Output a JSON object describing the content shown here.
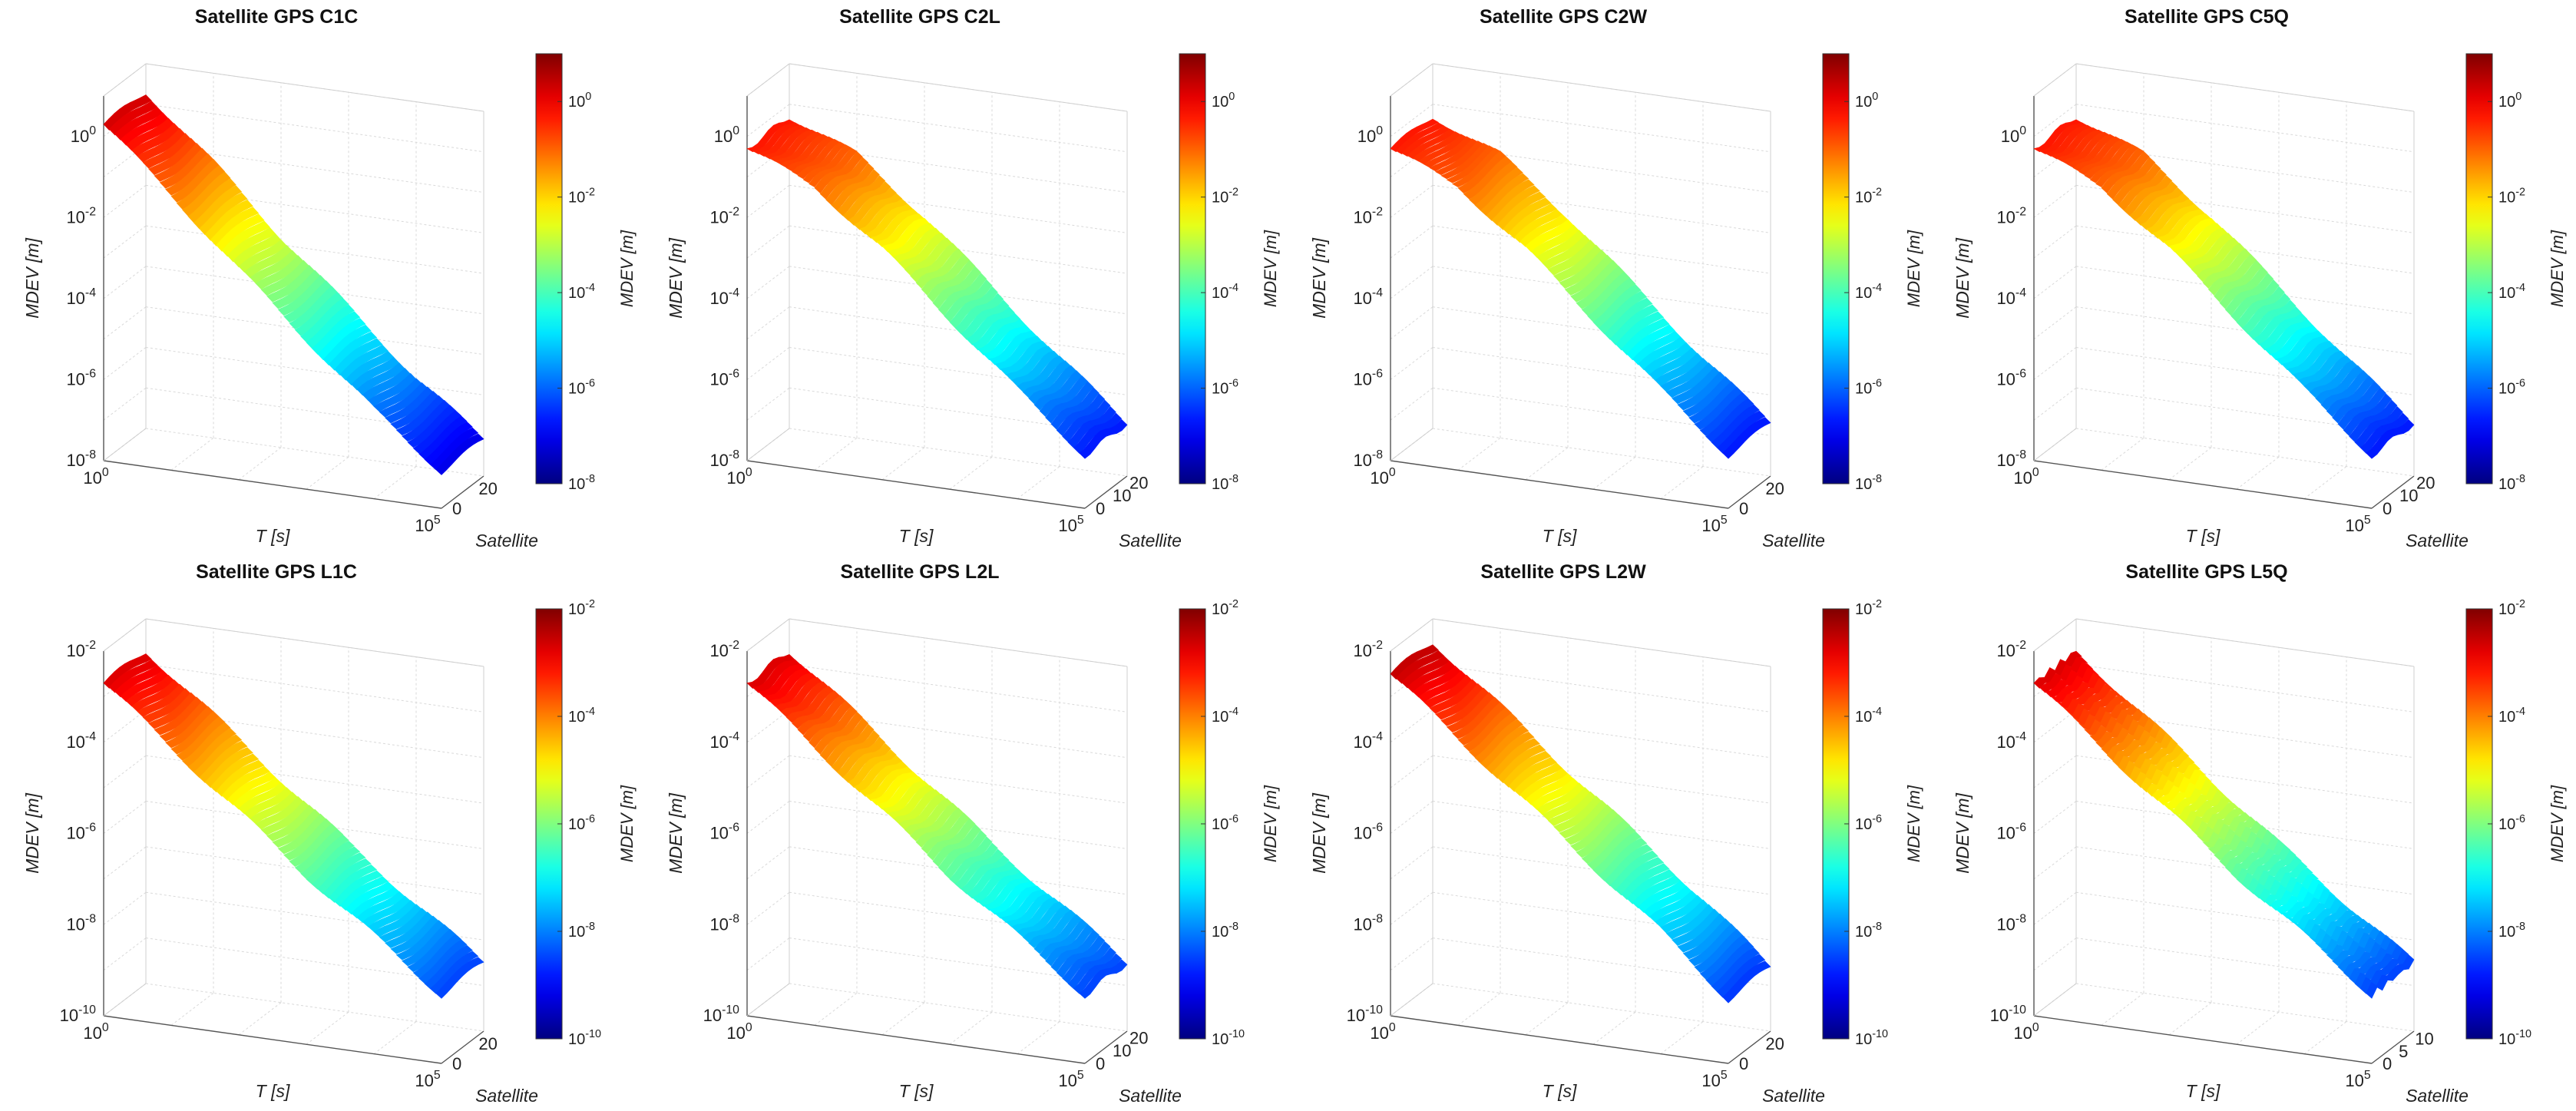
{
  "chart_data": [
    {
      "type": "surface",
      "title": "Satellite GPS C1C",
      "xlabel": "T [s]",
      "ylabel": "Satellite",
      "zlabel": "MDEV [m]",
      "colorbar_label": "MDEV [m]",
      "x_ticks": [
        "10^0",
        "10^5"
      ],
      "y_ticks": [
        "0",
        "20"
      ],
      "z_ticks": [
        "10^-8",
        "10^-6",
        "10^-4",
        "10^-2",
        "10^0"
      ],
      "colorbar_ticks": [
        "10^-8",
        "10^-6",
        "10^-4",
        "10^-2",
        "10^0"
      ],
      "x_log_range": [
        0,
        5
      ],
      "z_log_range": [
        -8,
        1
      ],
      "satellite_range": [
        0,
        32
      ],
      "colormap": "jet",
      "surface": {
        "tau_log": [
          0,
          1,
          2,
          3,
          4,
          5
        ],
        "mdev_log": [
          0.3,
          -1.2,
          -2.8,
          -4.3,
          -5.8,
          -7.1
        ]
      }
    },
    {
      "type": "surface",
      "title": "Satellite GPS C2L",
      "xlabel": "T [s]",
      "ylabel": "Satellite",
      "zlabel": "MDEV [m]",
      "colorbar_label": "MDEV [m]",
      "x_ticks": [
        "10^0",
        "10^5"
      ],
      "y_ticks": [
        "0",
        "10",
        "20"
      ],
      "z_ticks": [
        "10^-8",
        "10^-6",
        "10^-4",
        "10^-2",
        "10^0"
      ],
      "colorbar_ticks": [
        "10^-8",
        "10^-6",
        "10^-4",
        "10^-2",
        "10^0"
      ],
      "x_log_range": [
        0,
        5
      ],
      "z_log_range": [
        -8,
        1
      ],
      "satellite_range": [
        0,
        25
      ],
      "colormap": "jet",
      "surface": {
        "tau_log": [
          0,
          1,
          2,
          3,
          4,
          5
        ],
        "mdev_log": [
          -0.3,
          -1.0,
          -2.3,
          -3.8,
          -5.3,
          -6.7
        ]
      }
    },
    {
      "type": "surface",
      "title": "Satellite GPS C2W",
      "xlabel": "T [s]",
      "ylabel": "Satellite",
      "zlabel": "MDEV [m]",
      "colorbar_label": "MDEV [m]",
      "x_ticks": [
        "10^0",
        "10^5"
      ],
      "y_ticks": [
        "0",
        "20"
      ],
      "z_ticks": [
        "10^-8",
        "10^-6",
        "10^-4",
        "10^-2",
        "10^0"
      ],
      "colorbar_ticks": [
        "10^-8",
        "10^-6",
        "10^-4",
        "10^-2",
        "10^0"
      ],
      "x_log_range": [
        0,
        5
      ],
      "z_log_range": [
        -8,
        1
      ],
      "satellite_range": [
        0,
        32
      ],
      "colormap": "jet",
      "surface": {
        "tau_log": [
          0,
          1,
          2,
          3,
          4,
          5
        ],
        "mdev_log": [
          -0.3,
          -1.0,
          -2.3,
          -3.8,
          -5.3,
          -6.7
        ]
      }
    },
    {
      "type": "surface",
      "title": "Satellite GPS C5Q",
      "xlabel": "T [s]",
      "ylabel": "Satellite",
      "zlabel": "MDEV [m]",
      "colorbar_label": "MDEV [m]",
      "x_ticks": [
        "10^0",
        "10^5"
      ],
      "y_ticks": [
        "0",
        "10",
        "20"
      ],
      "z_ticks": [
        "10^-8",
        "10^-6",
        "10^-4",
        "10^-2",
        "10^0"
      ],
      "colorbar_ticks": [
        "10^-8",
        "10^-6",
        "10^-4",
        "10^-2",
        "10^0"
      ],
      "x_log_range": [
        0,
        5
      ],
      "z_log_range": [
        -8,
        1
      ],
      "satellite_range": [
        0,
        25
      ],
      "colormap": "jet",
      "surface": {
        "tau_log": [
          0,
          1,
          2,
          3,
          4,
          5
        ],
        "mdev_log": [
          -0.3,
          -1.0,
          -2.3,
          -3.8,
          -5.3,
          -6.7
        ]
      }
    },
    {
      "type": "surface",
      "title": "Satellite GPS L1C",
      "xlabel": "T [s]",
      "ylabel": "Satellite",
      "zlabel": "MDEV [m]",
      "colorbar_label": "MDEV [m]",
      "x_ticks": [
        "10^0",
        "10^5"
      ],
      "y_ticks": [
        "0",
        "20"
      ],
      "z_ticks": [
        "10^-10",
        "10^-8",
        "10^-6",
        "10^-4",
        "10^-2"
      ],
      "colorbar_ticks": [
        "10^-10",
        "10^-8",
        "10^-6",
        "10^-4",
        "10^-2"
      ],
      "x_log_range": [
        0,
        5
      ],
      "z_log_range": [
        -10,
        -2
      ],
      "satellite_range": [
        0,
        32
      ],
      "colormap": "jet",
      "surface": {
        "tau_log": [
          0,
          1,
          2,
          3,
          4,
          5
        ],
        "mdev_log": [
          -2.7,
          -3.9,
          -5.1,
          -6.3,
          -7.4,
          -8.5
        ]
      }
    },
    {
      "type": "surface",
      "title": "Satellite GPS L2L",
      "xlabel": "T [s]",
      "ylabel": "Satellite",
      "zlabel": "MDEV [m]",
      "colorbar_label": "MDEV [m]",
      "x_ticks": [
        "10^0",
        "10^5"
      ],
      "y_ticks": [
        "0",
        "10",
        "20"
      ],
      "z_ticks": [
        "10^-10",
        "10^-8",
        "10^-6",
        "10^-4",
        "10^-2"
      ],
      "colorbar_ticks": [
        "10^-10",
        "10^-8",
        "10^-6",
        "10^-4",
        "10^-2"
      ],
      "x_log_range": [
        0,
        5
      ],
      "z_log_range": [
        -10,
        -2
      ],
      "satellite_range": [
        0,
        25
      ],
      "colormap": "jet",
      "surface": {
        "tau_log": [
          0,
          1,
          2,
          3,
          4,
          5
        ],
        "mdev_log": [
          -2.7,
          -3.9,
          -5.1,
          -6.3,
          -7.4,
          -8.5
        ]
      }
    },
    {
      "type": "surface",
      "title": "Satellite GPS L2W",
      "xlabel": "T [s]",
      "ylabel": "Satellite",
      "zlabel": "MDEV [m]",
      "colorbar_label": "MDEV [m]",
      "x_ticks": [
        "10^0",
        "10^5"
      ],
      "y_ticks": [
        "0",
        "20"
      ],
      "z_ticks": [
        "10^-10",
        "10^-8",
        "10^-6",
        "10^-4",
        "10^-2"
      ],
      "colorbar_ticks": [
        "10^-10",
        "10^-8",
        "10^-6",
        "10^-4",
        "10^-2"
      ],
      "x_log_range": [
        0,
        5
      ],
      "z_log_range": [
        -10,
        -2
      ],
      "satellite_range": [
        0,
        32
      ],
      "colormap": "jet",
      "surface": {
        "tau_log": [
          0,
          1,
          2,
          3,
          4,
          5
        ],
        "mdev_log": [
          -2.5,
          -3.7,
          -4.9,
          -6.1,
          -7.3,
          -8.6
        ]
      }
    },
    {
      "type": "surface",
      "title": "Satellite GPS L5Q",
      "xlabel": "T [s]",
      "ylabel": "Satellite",
      "zlabel": "MDEV [m]",
      "colorbar_label": "MDEV [m]",
      "x_ticks": [
        "10^0",
        "10^5"
      ],
      "y_ticks": [
        "0",
        "5",
        "10"
      ],
      "z_ticks": [
        "10^-10",
        "10^-8",
        "10^-6",
        "10^-4",
        "10^-2"
      ],
      "colorbar_ticks": [
        "10^-10",
        "10^-8",
        "10^-6",
        "10^-4",
        "10^-2"
      ],
      "x_log_range": [
        0,
        5
      ],
      "z_log_range": [
        -10,
        -2
      ],
      "satellite_range": [
        0,
        13
      ],
      "colormap": "jet",
      "surface": {
        "tau_log": [
          0,
          1,
          2,
          3,
          4,
          5
        ],
        "mdev_log": [
          -2.7,
          -3.9,
          -5.1,
          -6.3,
          -7.4,
          -8.5
        ]
      }
    }
  ]
}
